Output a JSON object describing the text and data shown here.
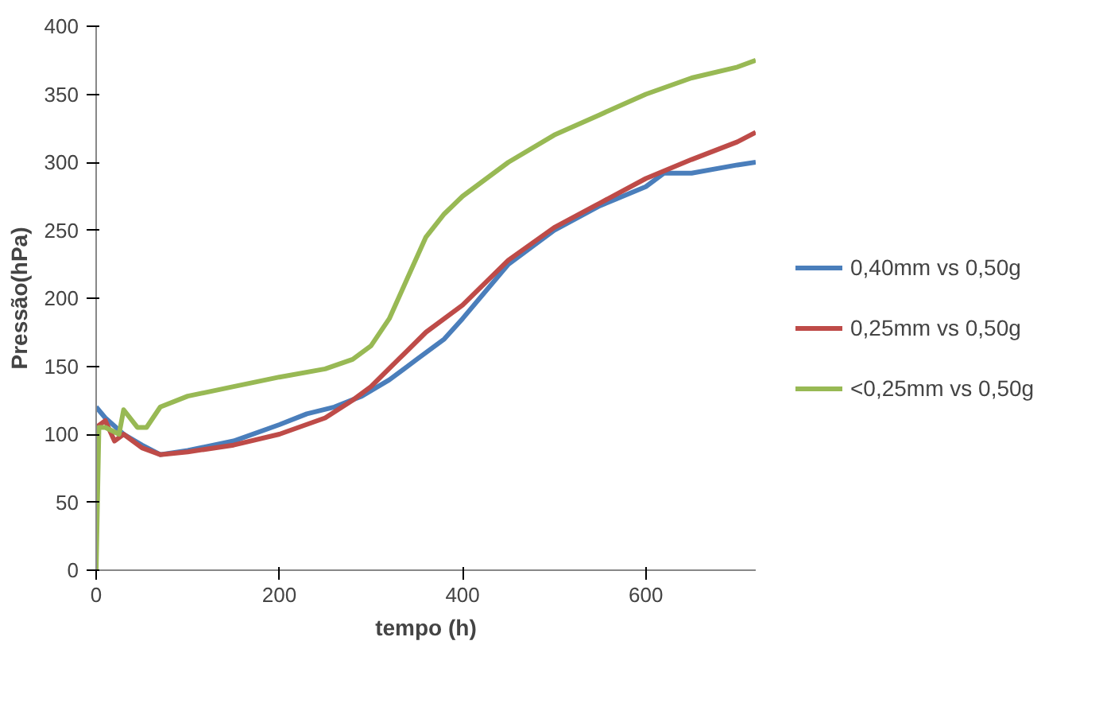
{
  "chart_data": {
    "type": "line",
    "xlabel": "tempo (h)",
    "ylabel": "Pressão(hPa)",
    "xlim": [
      0,
      720
    ],
    "ylim": [
      0,
      400
    ],
    "xticks": [
      0,
      200,
      400,
      600
    ],
    "yticks": [
      0,
      50,
      100,
      150,
      200,
      250,
      300,
      350,
      400
    ],
    "grid": false,
    "legend": "right",
    "marker": "none",
    "line_style": "solid",
    "series": [
      {
        "name": "0,40mm vs 0,50g",
        "color": "#4a7ebb",
        "x": [
          0,
          10,
          30,
          50,
          70,
          100,
          150,
          200,
          230,
          260,
          290,
          320,
          350,
          380,
          400,
          450,
          500,
          550,
          600,
          620,
          650,
          700,
          720
        ],
        "values": [
          120,
          112,
          100,
          92,
          85,
          88,
          95,
          107,
          115,
          120,
          128,
          140,
          155,
          170,
          185,
          225,
          250,
          268,
          282,
          292,
          292,
          298,
          300
        ]
      },
      {
        "name": "0,25mm vs 0,50g",
        "color": "#be4b48",
        "x": [
          0,
          10,
          20,
          30,
          50,
          70,
          100,
          150,
          200,
          250,
          280,
          300,
          330,
          360,
          400,
          450,
          500,
          550,
          600,
          650,
          700,
          720
        ],
        "values": [
          105,
          110,
          95,
          100,
          90,
          85,
          87,
          92,
          100,
          112,
          125,
          135,
          155,
          175,
          195,
          228,
          252,
          270,
          288,
          302,
          315,
          322
        ]
      },
      {
        "name": "<0,25mm vs 0,50g",
        "color": "#98b954",
        "x": [
          0,
          3,
          10,
          25,
          30,
          45,
          55,
          70,
          100,
          150,
          200,
          250,
          280,
          300,
          320,
          340,
          360,
          380,
          400,
          450,
          500,
          550,
          600,
          650,
          700,
          720
        ],
        "values": [
          0,
          105,
          105,
          100,
          118,
          105,
          105,
          120,
          128,
          135,
          142,
          148,
          155,
          165,
          185,
          215,
          245,
          262,
          275,
          300,
          320,
          335,
          350,
          362,
          370,
          375
        ]
      }
    ]
  }
}
